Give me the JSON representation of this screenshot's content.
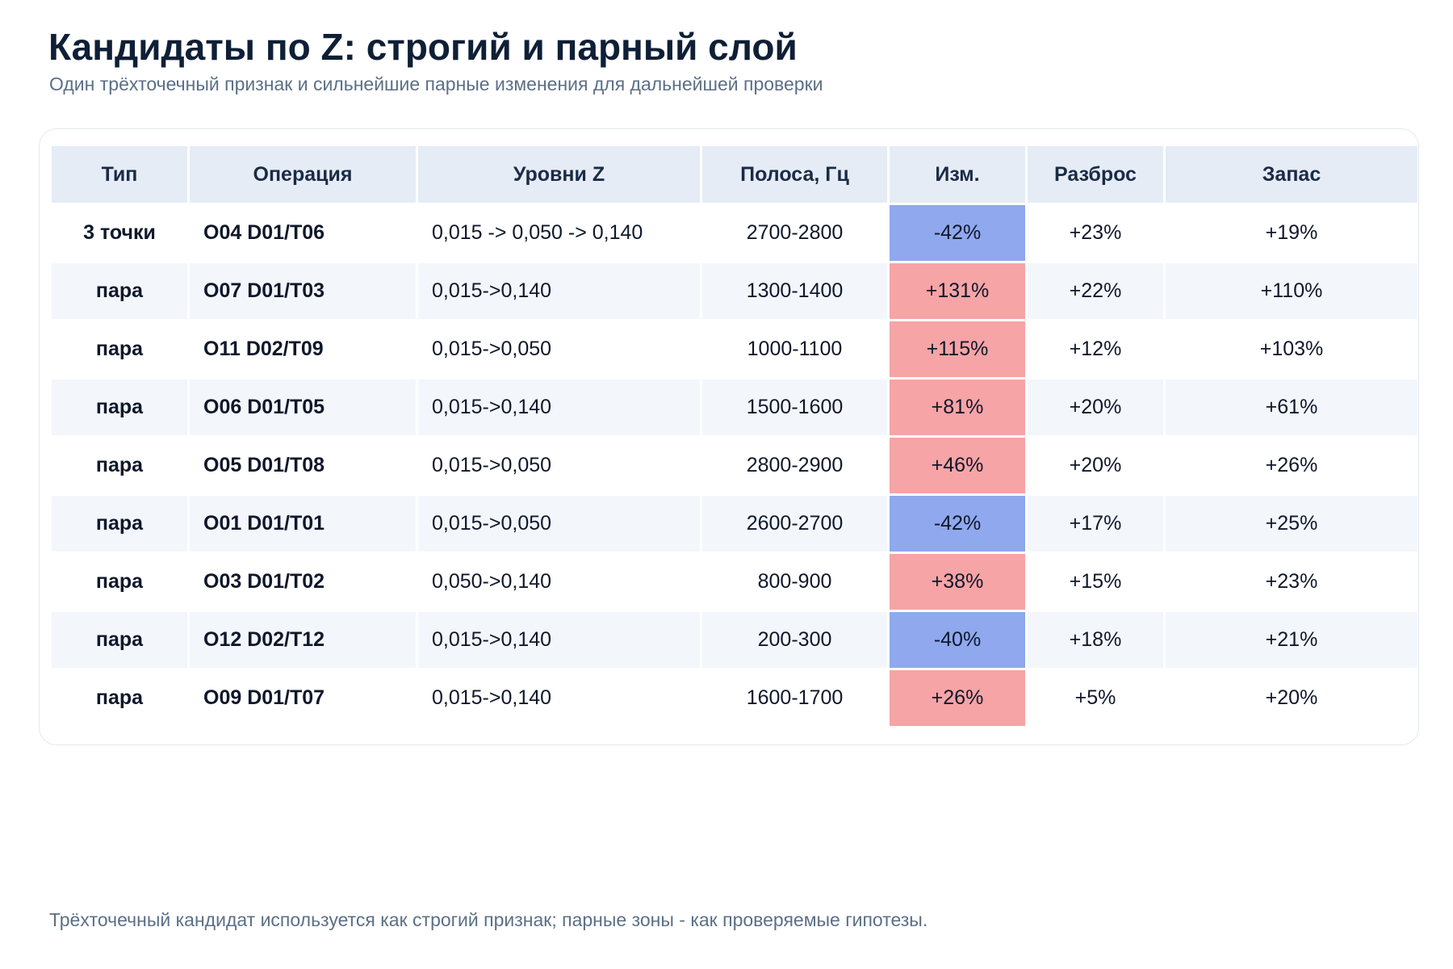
{
  "header": {
    "title": "Кандидаты по Z: строгий и парный слой",
    "subtitle": "Один трёхточечный признак и сильнейшие парные изменения для дальнейшей проверки"
  },
  "footnote": "Трёхточечный кандидат используется как строгий признак; парные зоны - как проверяемые гипотезы.",
  "colors": {
    "increase": "#f6a4a6",
    "decrease": "#8fa8ee",
    "margin": "#dff3ea",
    "header_row": "#e5ecf6"
  },
  "chart_data": {
    "type": "table",
    "title": "Кандидаты по Z: строгий и парный слой",
    "columns": [
      "Тип",
      "Операция",
      "Уровни Z",
      "Полоса, Гц",
      "Изм.",
      "Разброс",
      "Запас"
    ],
    "rows": [
      {
        "type": "3 точки",
        "operation": "O04 D01/T06",
        "levels": "0,015 -> 0,050 -> 0,140",
        "band": "2700-2800",
        "change": "-42%",
        "change_value": -42,
        "spread": "+23%",
        "margin": "+19%"
      },
      {
        "type": "пара",
        "operation": "O07 D01/T03",
        "levels": "0,015->0,140",
        "band": "1300-1400",
        "change": "+131%",
        "change_value": 131,
        "spread": "+22%",
        "margin": "+110%"
      },
      {
        "type": "пара",
        "operation": "O11 D02/T09",
        "levels": "0,015->0,050",
        "band": "1000-1100",
        "change": "+115%",
        "change_value": 115,
        "spread": "+12%",
        "margin": "+103%"
      },
      {
        "type": "пара",
        "operation": "O06 D01/T05",
        "levels": "0,015->0,140",
        "band": "1500-1600",
        "change": "+81%",
        "change_value": 81,
        "spread": "+20%",
        "margin": "+61%"
      },
      {
        "type": "пара",
        "operation": "O05 D01/T08",
        "levels": "0,015->0,050",
        "band": "2800-2900",
        "change": "+46%",
        "change_value": 46,
        "spread": "+20%",
        "margin": "+26%"
      },
      {
        "type": "пара",
        "operation": "O01 D01/T01",
        "levels": "0,015->0,050",
        "band": "2600-2700",
        "change": "-42%",
        "change_value": -42,
        "spread": "+17%",
        "margin": "+25%"
      },
      {
        "type": "пара",
        "operation": "O03 D01/T02",
        "levels": "0,050->0,140",
        "band": "800-900",
        "change": "+38%",
        "change_value": 38,
        "spread": "+15%",
        "margin": "+23%"
      },
      {
        "type": "пара",
        "operation": "O12 D02/T12",
        "levels": "0,015->0,140",
        "band": "200-300",
        "change": "-40%",
        "change_value": -40,
        "spread": "+18%",
        "margin": "+21%"
      },
      {
        "type": "пара",
        "operation": "O09 D01/T07",
        "levels": "0,015->0,140",
        "band": "1600-1700",
        "change": "+26%",
        "change_value": 26,
        "spread": "+5%",
        "margin": "+20%"
      }
    ]
  }
}
